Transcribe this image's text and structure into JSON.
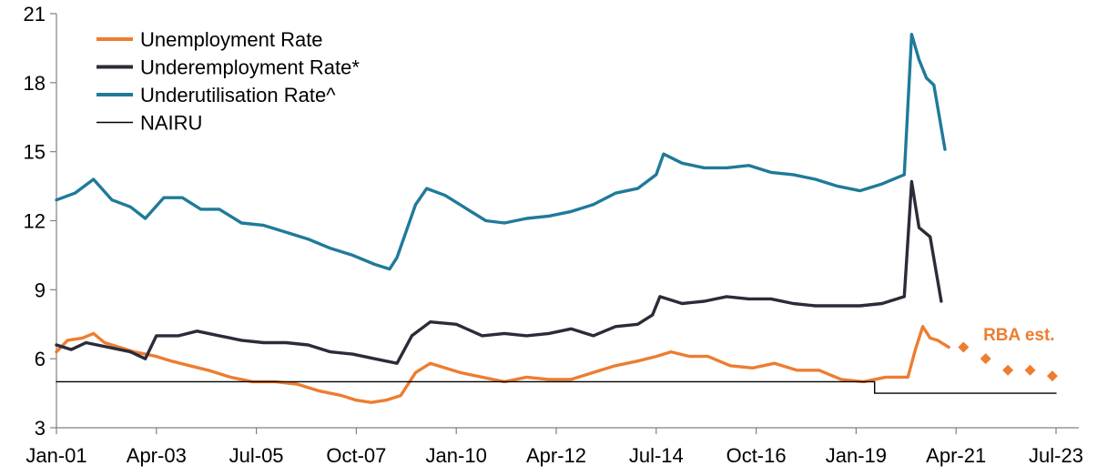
{
  "chart_data": {
    "type": "line",
    "title": "",
    "xlabel": "",
    "ylabel": "",
    "xlim": [
      "2001-01",
      "2023-07"
    ],
    "ylim": [
      3,
      21
    ],
    "y_ticks": [
      3,
      6,
      9,
      12,
      15,
      18,
      21
    ],
    "x_ticks": [
      "2001-01",
      "2003-04",
      "2005-07",
      "2007-10",
      "2010-01",
      "2012-04",
      "2014-07",
      "2016-10",
      "2019-01",
      "2021-04",
      "2023-07"
    ],
    "x_tick_labels": [
      "Jan-01",
      "Apr-03",
      "Jul-05",
      "Oct-07",
      "Jan-10",
      "Apr-12",
      "Jul-14",
      "Oct-16",
      "Jan-19",
      "Apr-21",
      "Jul-23"
    ],
    "grid": false,
    "legend_position": "top-left",
    "series": [
      {
        "name": "Unemployment Rate",
        "color": "#ED7D31",
        "style": "line",
        "points": [
          [
            "2001-01",
            6.3
          ],
          [
            "2001-04",
            6.8
          ],
          [
            "2001-08",
            6.9
          ],
          [
            "2001-11",
            7.1
          ],
          [
            "2002-02",
            6.7
          ],
          [
            "2002-06",
            6.5
          ],
          [
            "2002-10",
            6.3
          ],
          [
            "2003-01",
            6.2
          ],
          [
            "2003-04",
            6.1
          ],
          [
            "2003-08",
            5.9
          ],
          [
            "2004-01",
            5.7
          ],
          [
            "2004-06",
            5.5
          ],
          [
            "2004-12",
            5.2
          ],
          [
            "2005-06",
            5.0
          ],
          [
            "2005-12",
            5.0
          ],
          [
            "2006-06",
            4.9
          ],
          [
            "2006-12",
            4.6
          ],
          [
            "2007-06",
            4.4
          ],
          [
            "2007-10",
            4.2
          ],
          [
            "2008-02",
            4.1
          ],
          [
            "2008-06",
            4.2
          ],
          [
            "2008-10",
            4.4
          ],
          [
            "2009-02",
            5.4
          ],
          [
            "2009-06",
            5.8
          ],
          [
            "2009-10",
            5.6
          ],
          [
            "2010-02",
            5.4
          ],
          [
            "2010-08",
            5.2
          ],
          [
            "2011-02",
            5.0
          ],
          [
            "2011-08",
            5.2
          ],
          [
            "2012-02",
            5.1
          ],
          [
            "2012-08",
            5.1
          ],
          [
            "2013-02",
            5.4
          ],
          [
            "2013-08",
            5.7
          ],
          [
            "2014-02",
            5.9
          ],
          [
            "2014-07",
            6.1
          ],
          [
            "2014-11",
            6.3
          ],
          [
            "2015-04",
            6.1
          ],
          [
            "2015-09",
            6.1
          ],
          [
            "2016-03",
            5.7
          ],
          [
            "2016-09",
            5.6
          ],
          [
            "2017-03",
            5.8
          ],
          [
            "2017-09",
            5.5
          ],
          [
            "2018-03",
            5.5
          ],
          [
            "2018-09",
            5.1
          ],
          [
            "2019-03",
            5.0
          ],
          [
            "2019-09",
            5.2
          ],
          [
            "2020-03",
            5.2
          ],
          [
            "2020-05",
            6.4
          ],
          [
            "2020-07",
            7.4
          ],
          [
            "2020-09",
            6.9
          ],
          [
            "2020-11",
            6.8
          ],
          [
            "2021-02",
            6.5
          ]
        ]
      },
      {
        "name": "Underemployment Rate*",
        "color": "#2B2B3A",
        "style": "line",
        "points": [
          [
            "2001-01",
            6.6
          ],
          [
            "2001-05",
            6.4
          ],
          [
            "2001-09",
            6.7
          ],
          [
            "2002-03",
            6.5
          ],
          [
            "2002-09",
            6.3
          ],
          [
            "2003-01",
            6.0
          ],
          [
            "2003-04",
            7.0
          ],
          [
            "2003-10",
            7.0
          ],
          [
            "2004-03",
            7.2
          ],
          [
            "2004-09",
            7.0
          ],
          [
            "2005-03",
            6.8
          ],
          [
            "2005-09",
            6.7
          ],
          [
            "2006-03",
            6.7
          ],
          [
            "2006-09",
            6.6
          ],
          [
            "2007-03",
            6.3
          ],
          [
            "2007-09",
            6.2
          ],
          [
            "2008-03",
            6.0
          ],
          [
            "2008-09",
            5.8
          ],
          [
            "2009-01",
            7.0
          ],
          [
            "2009-06",
            7.6
          ],
          [
            "2010-01",
            7.5
          ],
          [
            "2010-08",
            7.0
          ],
          [
            "2011-02",
            7.1
          ],
          [
            "2011-08",
            7.0
          ],
          [
            "2012-02",
            7.1
          ],
          [
            "2012-08",
            7.3
          ],
          [
            "2013-02",
            7.0
          ],
          [
            "2013-08",
            7.4
          ],
          [
            "2014-02",
            7.5
          ],
          [
            "2014-06",
            7.9
          ],
          [
            "2014-08",
            8.7
          ],
          [
            "2015-02",
            8.4
          ],
          [
            "2015-08",
            8.5
          ],
          [
            "2016-02",
            8.7
          ],
          [
            "2016-08",
            8.6
          ],
          [
            "2017-02",
            8.6
          ],
          [
            "2017-08",
            8.4
          ],
          [
            "2018-02",
            8.3
          ],
          [
            "2018-08",
            8.3
          ],
          [
            "2019-02",
            8.3
          ],
          [
            "2019-08",
            8.4
          ],
          [
            "2020-02",
            8.7
          ],
          [
            "2020-04",
            13.7
          ],
          [
            "2020-06",
            11.7
          ],
          [
            "2020-09",
            11.3
          ],
          [
            "2020-12",
            8.5
          ]
        ]
      },
      {
        "name": "Underutilisation Rate^",
        "color": "#1F7A99",
        "style": "line",
        "points": [
          [
            "2001-01",
            12.9
          ],
          [
            "2001-06",
            13.2
          ],
          [
            "2001-11",
            13.8
          ],
          [
            "2002-04",
            12.9
          ],
          [
            "2002-09",
            12.6
          ],
          [
            "2003-01",
            12.1
          ],
          [
            "2003-06",
            13.0
          ],
          [
            "2003-11",
            13.0
          ],
          [
            "2004-04",
            12.5
          ],
          [
            "2004-09",
            12.5
          ],
          [
            "2005-03",
            11.9
          ],
          [
            "2005-09",
            11.8
          ],
          [
            "2006-03",
            11.5
          ],
          [
            "2006-09",
            11.2
          ],
          [
            "2007-03",
            10.8
          ],
          [
            "2007-09",
            10.5
          ],
          [
            "2008-03",
            10.1
          ],
          [
            "2008-07",
            9.9
          ],
          [
            "2008-09",
            10.4
          ],
          [
            "2009-02",
            12.7
          ],
          [
            "2009-05",
            13.4
          ],
          [
            "2009-10",
            13.1
          ],
          [
            "2010-04",
            12.5
          ],
          [
            "2010-09",
            12.0
          ],
          [
            "2011-02",
            11.9
          ],
          [
            "2011-08",
            12.1
          ],
          [
            "2012-02",
            12.2
          ],
          [
            "2012-08",
            12.4
          ],
          [
            "2013-02",
            12.7
          ],
          [
            "2013-08",
            13.2
          ],
          [
            "2014-02",
            13.4
          ],
          [
            "2014-07",
            14.0
          ],
          [
            "2014-09",
            14.9
          ],
          [
            "2015-02",
            14.5
          ],
          [
            "2015-08",
            14.3
          ],
          [
            "2016-02",
            14.3
          ],
          [
            "2016-08",
            14.4
          ],
          [
            "2017-02",
            14.1
          ],
          [
            "2017-08",
            14.0
          ],
          [
            "2018-02",
            13.8
          ],
          [
            "2018-08",
            13.5
          ],
          [
            "2019-02",
            13.3
          ],
          [
            "2019-08",
            13.6
          ],
          [
            "2020-02",
            14.0
          ],
          [
            "2020-04",
            20.1
          ],
          [
            "2020-06",
            19.0
          ],
          [
            "2020-08",
            18.2
          ],
          [
            "2020-10",
            17.9
          ],
          [
            "2021-01",
            15.1
          ]
        ]
      },
      {
        "name": "NAIRU",
        "color": "#000000",
        "style": "step",
        "points": [
          [
            "2001-01",
            5.0
          ],
          [
            "2019-06",
            5.0
          ],
          [
            "2019-06",
            4.5
          ],
          [
            "2023-07",
            4.5
          ]
        ]
      },
      {
        "name": "RBA est.",
        "color": "#ED7D31",
        "style": "markers",
        "points": [
          [
            "2021-06",
            6.5
          ],
          [
            "2021-12",
            6.0
          ],
          [
            "2022-06",
            5.5
          ],
          [
            "2022-12",
            5.5
          ],
          [
            "2023-06",
            5.25
          ]
        ]
      }
    ],
    "annotations": [
      {
        "text": "RBA est.",
        "color": "#ED7D31",
        "x": "2022-09",
        "y": 6.8
      }
    ]
  }
}
